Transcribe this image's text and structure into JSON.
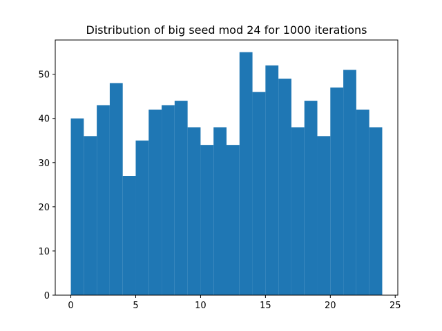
{
  "chart_data": {
    "type": "bar",
    "title": "Distribution of big seed mod 24 for 1000 iterations",
    "xlabel": "",
    "ylabel": "",
    "bin_edges_start": 0,
    "bin_edges_end": 24,
    "bins": 24,
    "values": [
      40,
      36,
      43,
      48,
      27,
      35,
      42,
      43,
      44,
      38,
      34,
      38,
      34,
      55,
      46,
      52,
      49,
      38,
      44,
      36,
      47,
      51,
      42,
      38
    ],
    "xlim": [
      -1.2,
      25.2
    ],
    "ylim": [
      0,
      57.75
    ],
    "xticks": [
      0,
      5,
      10,
      15,
      20,
      25
    ],
    "xtick_labels": [
      "0",
      "5",
      "10",
      "15",
      "20",
      "25"
    ],
    "yticks": [
      0,
      10,
      20,
      30,
      40,
      50
    ],
    "ytick_labels": [
      "0",
      "10",
      "20",
      "30",
      "40",
      "50"
    ],
    "bar_color": "#1f77b4",
    "grid": false,
    "legend": false
  }
}
